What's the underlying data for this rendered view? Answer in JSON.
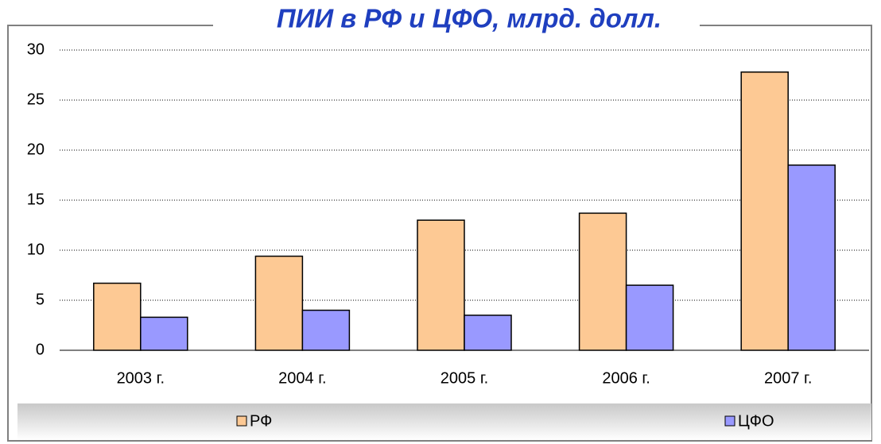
{
  "chart_data": {
    "type": "bar",
    "title": "ПИИ в РФ и ЦФО, млрд. долл.",
    "categories": [
      "2003 г.",
      "2004 г.",
      "2005 г.",
      "2006 г.",
      "2007 г."
    ],
    "series": [
      {
        "name": "РФ",
        "color": "#fdc994",
        "values": [
          6.7,
          9.4,
          13.0,
          13.7,
          27.8
        ]
      },
      {
        "name": "ЦФО",
        "color": "#9999ff",
        "values": [
          3.3,
          4.0,
          3.5,
          6.5,
          18.5
        ]
      }
    ],
    "ylim": [
      0,
      30
    ],
    "yticks": [
      0,
      5,
      10,
      15,
      20,
      25,
      30
    ],
    "grid": true,
    "legend": "bottom"
  }
}
